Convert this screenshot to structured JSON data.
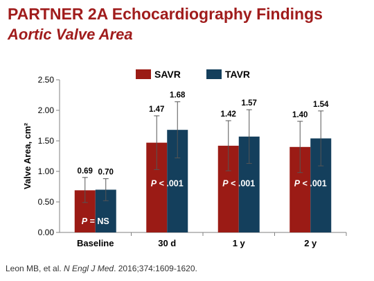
{
  "header": {
    "title": "PARTNER 2A Echocardiography Findings",
    "subtitle": "Aortic Valve Area"
  },
  "citation": {
    "before": "Leon MB, et al. ",
    "journal": "N Engl J Med",
    "after": ". 2016;374:1609-1620."
  },
  "colors": {
    "SAVR": "#9b1b15",
    "TAVR": "#143f5c",
    "title": "#a01c1c",
    "error_bar": "#555555"
  },
  "chart_data": {
    "type": "bar",
    "title": "",
    "xlabel": "",
    "ylabel": "Valve Area, cm²",
    "ylim": [
      0,
      2.5
    ],
    "yticks": [
      "0.00",
      "0.50",
      "1.00",
      "1.50",
      "2.00",
      "2.50"
    ],
    "grid": false,
    "legend_position": "top-center",
    "categories": [
      "Baseline",
      "30 d",
      "1 y",
      "2 y"
    ],
    "series": [
      {
        "name": "SAVR",
        "values": [
          0.69,
          1.47,
          1.42,
          1.4
        ],
        "labels": [
          "0.69",
          "1.47",
          "1.42",
          "1.40"
        ],
        "error_upper": [
          0.9,
          1.91,
          1.83,
          1.82
        ],
        "error_lower": [
          0.49,
          1.03,
          1.01,
          0.98
        ]
      },
      {
        "name": "TAVR",
        "values": [
          0.7,
          1.68,
          1.57,
          1.54
        ],
        "labels": [
          "0.70",
          "1.68",
          "1.57",
          "1.54"
        ],
        "error_upper": [
          0.88,
          2.14,
          2.01,
          1.99
        ],
        "error_lower": [
          0.52,
          1.22,
          1.13,
          1.09
        ]
      }
    ],
    "annotations": [
      {
        "category": 0,
        "p_label": "P",
        "text": " = NS",
        "y": 0.18
      },
      {
        "category": 1,
        "p_label": "P",
        "text": " < .001",
        "y": 0.8
      },
      {
        "category": 2,
        "p_label": "P",
        "text": " < .001",
        "y": 0.8
      },
      {
        "category": 3,
        "p_label": "P",
        "text": " < .001",
        "y": 0.8
      }
    ]
  }
}
